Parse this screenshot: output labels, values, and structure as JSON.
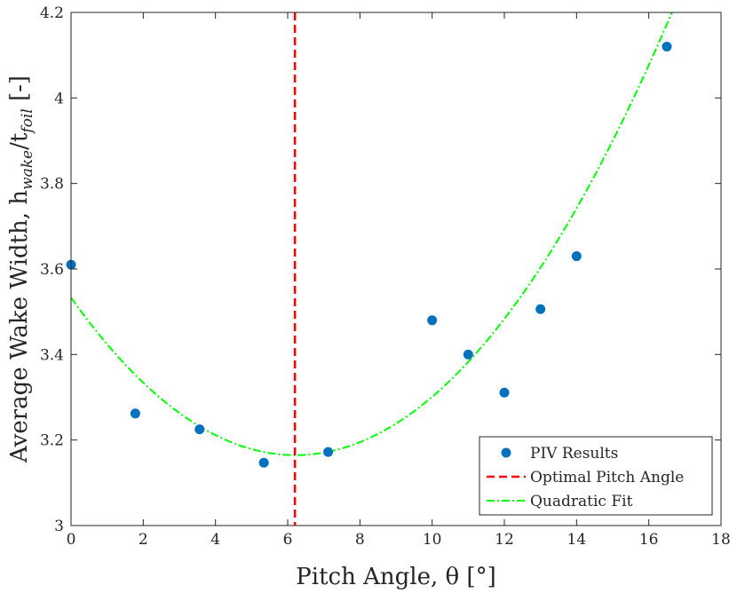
{
  "chart_data": {
    "type": "scatter",
    "title": "",
    "xlabel": "Pitch Angle, θ [°]",
    "ylabel": "Average Wake Width, h_wake/t_foil [-]",
    "xlim": [
      0,
      18
    ],
    "ylim": [
      3,
      4.2
    ],
    "xticks": [
      0,
      2,
      4,
      6,
      8,
      10,
      12,
      14,
      16,
      18
    ],
    "yticks": [
      3,
      3.2,
      3.4,
      3.6,
      3.8,
      4,
      4.2
    ],
    "xtick_labels": [
      "0",
      "2",
      "4",
      "6",
      "8",
      "10",
      "12",
      "14",
      "16",
      "18"
    ],
    "ytick_labels": [
      "3",
      "3.2",
      "3.4",
      "3.6",
      "3.8",
      "4",
      "4.2"
    ],
    "grid": false,
    "legend_position": "bottom-right",
    "series": [
      {
        "name": "PIV Results",
        "kind": "scatter",
        "color": "#0072BD",
        "points": [
          [
            0,
            3.61
          ],
          [
            1.78,
            3.262
          ],
          [
            3.56,
            3.225
          ],
          [
            5.34,
            3.147
          ],
          [
            7.12,
            3.172
          ],
          [
            10.0,
            3.48
          ],
          [
            11.0,
            3.4
          ],
          [
            12.0,
            3.311
          ],
          [
            13.0,
            3.506
          ],
          [
            14.0,
            3.63
          ],
          [
            16.5,
            4.12
          ]
        ]
      },
      {
        "name": "Optimal Pitch Angle",
        "kind": "vline",
        "color": "#FF0000",
        "x": 6.2
      },
      {
        "name": "Quadratic Fit",
        "kind": "quadratic",
        "color": "#00FF00",
        "coefficients": {
          "a": 0.00953,
          "b": -0.1185,
          "c": 3.533
        },
        "x_range": [
          0,
          17.2
        ]
      }
    ]
  }
}
